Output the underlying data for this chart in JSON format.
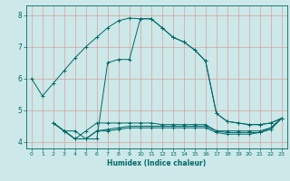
{
  "xlabel": "Humidex (Indice chaleur)",
  "bg_color": "#cce8e8",
  "grid_color": "#d9a0a0",
  "line_color": "#006868",
  "xlim": [
    -0.5,
    23.5
  ],
  "ylim": [
    3.8,
    8.3
  ],
  "xticks": [
    0,
    1,
    2,
    3,
    4,
    5,
    6,
    7,
    8,
    9,
    10,
    11,
    12,
    13,
    14,
    15,
    16,
    17,
    18,
    19,
    20,
    21,
    22,
    23
  ],
  "yticks": [
    4,
    5,
    6,
    7,
    8
  ],
  "lines": [
    {
      "x": [
        0,
        1,
        2,
        3,
        4,
        5,
        6,
        7,
        8,
        9,
        10,
        11,
        12,
        13,
        14,
        15,
        16,
        17,
        18,
        19,
        20,
        21,
        22,
        23
      ],
      "y": [
        6.0,
        5.45,
        5.85,
        6.25,
        6.65,
        7.0,
        7.3,
        7.6,
        7.82,
        7.9,
        7.88,
        7.88,
        7.6,
        7.3,
        7.15,
        6.9,
        6.55,
        4.9,
        4.65,
        4.6,
        4.55,
        4.55,
        4.6,
        4.75
      ]
    },
    {
      "x": [
        2,
        3,
        4,
        5,
        6,
        7,
        8,
        9,
        10,
        11,
        12,
        13,
        14,
        15,
        16,
        17,
        18,
        19,
        20,
        21,
        22,
        23
      ],
      "y": [
        4.6,
        4.35,
        4.35,
        4.1,
        4.1,
        6.5,
        6.6,
        6.6,
        7.88,
        7.88,
        7.6,
        7.3,
        7.15,
        6.9,
        6.55,
        4.9,
        4.65,
        4.6,
        4.55,
        4.55,
        4.6,
        4.75
      ]
    },
    {
      "x": [
        2,
        3,
        4,
        5,
        6,
        7,
        8,
        9,
        10,
        11,
        12,
        13,
        14,
        15,
        16,
        17,
        18,
        19,
        20,
        21,
        22,
        23
      ],
      "y": [
        4.6,
        4.35,
        4.1,
        4.35,
        4.6,
        4.6,
        4.6,
        4.6,
        4.6,
        4.6,
        4.55,
        4.55,
        4.55,
        4.55,
        4.55,
        4.35,
        4.35,
        4.35,
        4.35,
        4.35,
        4.45,
        4.75
      ]
    },
    {
      "x": [
        2,
        3,
        4,
        5,
        6,
        7,
        8,
        9,
        10,
        11,
        12,
        13,
        14,
        15,
        16,
        17,
        18,
        19,
        20,
        21,
        22,
        23
      ],
      "y": [
        4.6,
        4.35,
        4.1,
        4.1,
        4.35,
        4.4,
        4.45,
        4.5,
        4.5,
        4.5,
        4.5,
        4.5,
        4.5,
        4.5,
        4.5,
        4.35,
        4.3,
        4.3,
        4.3,
        4.3,
        4.45,
        4.75
      ]
    },
    {
      "x": [
        2,
        3,
        4,
        5,
        6,
        7,
        8,
        9,
        10,
        11,
        12,
        13,
        14,
        15,
        16,
        17,
        18,
        19,
        20,
        21,
        22,
        23
      ],
      "y": [
        4.6,
        4.35,
        4.1,
        4.1,
        4.35,
        4.35,
        4.4,
        4.45,
        4.45,
        4.45,
        4.45,
        4.45,
        4.45,
        4.45,
        4.45,
        4.3,
        4.25,
        4.25,
        4.25,
        4.3,
        4.4,
        4.75
      ]
    }
  ]
}
